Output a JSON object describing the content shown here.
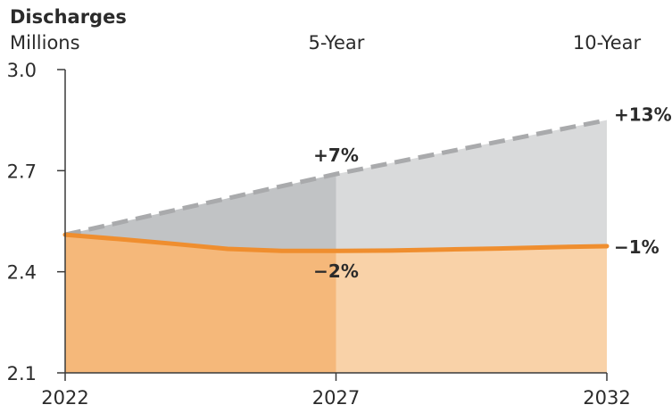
{
  "chart_data": {
    "type": "area",
    "title": "Discharges",
    "ylabel": "Millions",
    "period_labels": [
      "5-Year",
      "10-Year"
    ],
    "x": [
      2022,
      2023,
      2024,
      2025,
      2026,
      2027,
      2028,
      2029,
      2030,
      2031,
      2032
    ],
    "x_ticks": [
      "2022",
      "2027",
      "2032"
    ],
    "y_ticks": [
      "3.0",
      "2.7",
      "2.4",
      "2.1"
    ],
    "ylim": [
      2.1,
      3.0
    ],
    "xlim": [
      2022,
      2032
    ],
    "series": [
      {
        "style": "dashed",
        "values": [
          2.51,
          2.546,
          2.582,
          2.618,
          2.654,
          2.69,
          2.722,
          2.754,
          2.786,
          2.818,
          2.85
        ]
      },
      {
        "style": "solid",
        "values": [
          2.51,
          2.497,
          2.483,
          2.468,
          2.462,
          2.462,
          2.463,
          2.466,
          2.469,
          2.473,
          2.476
        ]
      }
    ],
    "annotations": [
      {
        "text": "+7%",
        "x": 2027,
        "y": 2.69
      },
      {
        "text": "−2%",
        "x": 2027,
        "y": 2.462
      },
      {
        "text": "+13%",
        "x": 2032,
        "y": 2.85
      },
      {
        "text": "−1%",
        "x": 2032,
        "y": 2.476
      }
    ],
    "colors": {
      "dashed_line": "#a9aaac",
      "solid_line": "#ef8e2f",
      "band_5yr": "#c1c3c5",
      "band_10yr": "#d9dadb",
      "area_5yr": "#f5b87a",
      "area_10yr": "#f9d2a8",
      "axis": "#3a3a3a"
    },
    "grid": false,
    "legend": "none"
  }
}
